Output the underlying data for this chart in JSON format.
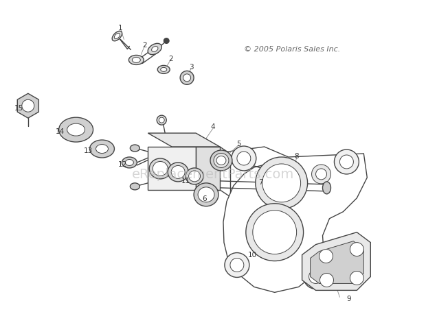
{
  "copyright_text": "© 2005 Polaris Sales Inc.",
  "watermark_text": "eReplacementParts.com",
  "bg_color": "#ffffff",
  "line_color": "#444444",
  "text_color": "#333333",
  "watermark_color": "#bbbbbb",
  "copyright_color": "#666666",
  "figsize": [
    6.2,
    4.56
  ],
  "dpi": 100
}
